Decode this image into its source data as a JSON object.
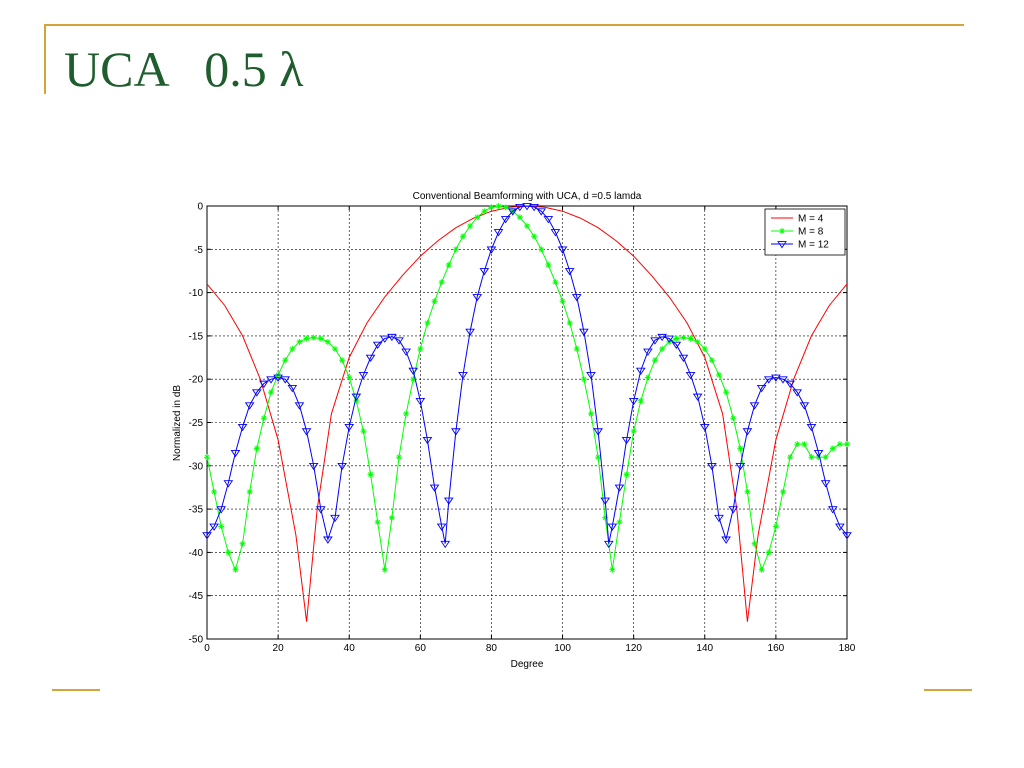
{
  "slide": {
    "title": "UCA   0.5 λ"
  },
  "colors": {
    "accent": "#d6a33a",
    "title": "#1f5c2e"
  },
  "chart_data": {
    "type": "line",
    "title": "Conventional Beamforming with UCA,  d =0.5 lamda",
    "xlabel": "Degree",
    "ylabel": "Normalized in dB",
    "xlim": [
      0,
      180
    ],
    "ylim": [
      -50,
      0
    ],
    "xticks": [
      0,
      20,
      40,
      60,
      80,
      100,
      120,
      140,
      160,
      180
    ],
    "yticks": [
      0,
      -5,
      -10,
      -15,
      -20,
      -25,
      -30,
      -35,
      -40,
      -45,
      -50
    ],
    "grid": true,
    "legend_position": "top-right",
    "series": [
      {
        "name": "M = 4",
        "color": "#ff0000",
        "marker": "none",
        "x": [
          0,
          5,
          10,
          15,
          20,
          25,
          28,
          31,
          35,
          40,
          45,
          50,
          55,
          60,
          65,
          70,
          75,
          80,
          85,
          90,
          95,
          100,
          105,
          110,
          115,
          120,
          125,
          130,
          135,
          140,
          145,
          149,
          152,
          155,
          160,
          165,
          170,
          175,
          180
        ],
        "y": [
          -9,
          -11.5,
          -15,
          -20,
          -27,
          -38,
          -48,
          -35,
          -24,
          -17.5,
          -13.5,
          -10.5,
          -8,
          -5.8,
          -4,
          -2.5,
          -1.4,
          -0.6,
          -0.15,
          0,
          -0.15,
          -0.6,
          -1.4,
          -2.5,
          -4,
          -5.8,
          -8,
          -10.5,
          -13.5,
          -17.5,
          -24,
          -35,
          -48,
          -38,
          -27,
          -20,
          -15,
          -11.5,
          -9
        ]
      },
      {
        "name": "M = 8",
        "color": "#00ff00",
        "marker": "star",
        "x": [
          0,
          2,
          4,
          6,
          8,
          10,
          12,
          14,
          16,
          18,
          20,
          22,
          24,
          26,
          28,
          30,
          32,
          34,
          36,
          38,
          40,
          42,
          44,
          46,
          48,
          50,
          52,
          54,
          56,
          58,
          60,
          62,
          64,
          66,
          68,
          70,
          72,
          74,
          76,
          78,
          80,
          82,
          84,
          86,
          88,
          90,
          92,
          94,
          96,
          98,
          100,
          102,
          104,
          106,
          108,
          110,
          112,
          114,
          116,
          118,
          120,
          122,
          124,
          126,
          128,
          130,
          132,
          134,
          136,
          138,
          140,
          142,
          144,
          146,
          148,
          150,
          152,
          154,
          156,
          158,
          160,
          162,
          164,
          166,
          168,
          170,
          172,
          174,
          176,
          178,
          180
        ],
        "y": [
          -29,
          -33,
          -37,
          -40,
          -42,
          -39,
          -33,
          -28,
          -24.5,
          -21.5,
          -19.5,
          -17.8,
          -16.5,
          -15.7,
          -15.3,
          -15.2,
          -15.3,
          -15.7,
          -16.5,
          -17.8,
          -19.8,
          -22.5,
          -26,
          -31,
          -36.5,
          -42,
          -36,
          -29,
          -24,
          -20,
          -16.5,
          -13.5,
          -11,
          -8.8,
          -6.8,
          -5,
          -3.5,
          -2.3,
          -1.3,
          -0.6,
          -0.15,
          0,
          -0.15,
          -0.6,
          -1.3,
          -2.3,
          -3.5,
          -5,
          -6.8,
          -8.8,
          -11,
          -13.5,
          -16.5,
          -20,
          -24,
          -29,
          -36,
          -42,
          -36.5,
          -31,
          -26,
          -22.5,
          -19.8,
          -17.8,
          -16.5,
          -15.7,
          -15.3,
          -15.2,
          -15.3,
          -15.7,
          -16.5,
          -17.8,
          -19.5,
          -21.5,
          -24.5,
          -28,
          -33,
          -39,
          -42,
          -40,
          -37,
          -33,
          -29,
          -27.5,
          -27.5,
          -29,
          -29,
          -29,
          -28,
          -27.5,
          -27.5
        ]
      },
      {
        "name": "M = 12",
        "color": "#0000ff",
        "marker": "triangle-down",
        "x": [
          0,
          2,
          4,
          6,
          8,
          10,
          12,
          14,
          16,
          18,
          20,
          22,
          24,
          26,
          28,
          30,
          32,
          34,
          36,
          38,
          40,
          42,
          44,
          46,
          48,
          50,
          52,
          54,
          56,
          58,
          60,
          62,
          64,
          66,
          67,
          68,
          70,
          72,
          74,
          76,
          78,
          80,
          82,
          84,
          86,
          88,
          90,
          92,
          94,
          96,
          98,
          100,
          102,
          104,
          106,
          108,
          110,
          112,
          113,
          114,
          116,
          118,
          120,
          122,
          124,
          126,
          128,
          130,
          132,
          134,
          136,
          138,
          140,
          142,
          144,
          146,
          148,
          150,
          152,
          154,
          156,
          158,
          160,
          162,
          164,
          166,
          168,
          170,
          172,
          174,
          176,
          178,
          180
        ],
        "y": [
          -38,
          -37,
          -35,
          -32,
          -28.5,
          -25.5,
          -23,
          -21.5,
          -20.5,
          -20,
          -19.8,
          -20,
          -21,
          -23,
          -26,
          -30,
          -35,
          -38.5,
          -36,
          -30,
          -25.5,
          -22,
          -19.5,
          -17.5,
          -16,
          -15.3,
          -15.1,
          -15.5,
          -16.8,
          -19,
          -22.5,
          -27,
          -32.5,
          -37,
          -39,
          -34,
          -26,
          -19.5,
          -14.5,
          -10.5,
          -7.5,
          -5,
          -3,
          -1.5,
          -0.6,
          -0.1,
          0,
          -0.1,
          -0.6,
          -1.5,
          -3,
          -5,
          -7.5,
          -10.5,
          -14.5,
          -19.5,
          -26,
          -34,
          -39,
          -37,
          -32.5,
          -27,
          -22.5,
          -19,
          -16.8,
          -15.5,
          -15.1,
          -15.3,
          -16,
          -17.5,
          -19.5,
          -22,
          -25.5,
          -30,
          -36,
          -38.5,
          -35,
          -30,
          -26,
          -23,
          -21,
          -20,
          -19.8,
          -20,
          -20.5,
          -21.5,
          -23,
          -25.5,
          -28.5,
          -32,
          -35,
          -37,
          -38
        ]
      }
    ]
  }
}
